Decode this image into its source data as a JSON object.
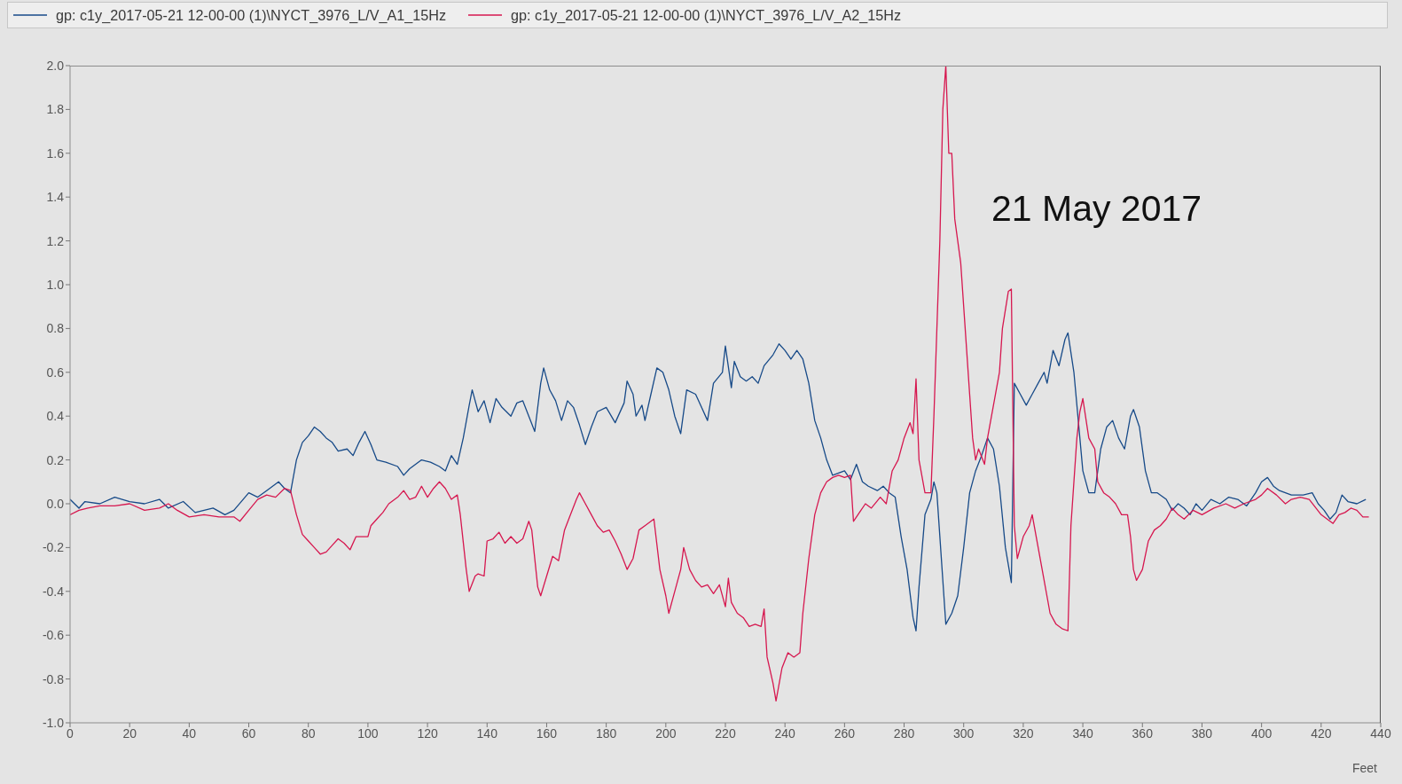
{
  "chart_data": {
    "type": "line",
    "xlabel": "Feet",
    "annotations": [
      "21 May 2017"
    ],
    "xlim": [
      0,
      440
    ],
    "xticks": [
      0,
      20,
      40,
      60,
      80,
      100,
      120,
      140,
      160,
      180,
      200,
      220,
      240,
      260,
      280,
      300,
      320,
      340,
      360,
      380,
      400,
      420,
      440
    ],
    "ylim": [
      -1,
      2
    ],
    "yticks": [
      {
        "value": -1,
        "label": "-1.0"
      },
      {
        "value": -0.8,
        "label": "-0.8"
      },
      {
        "value": -0.6,
        "label": "-0.6"
      },
      {
        "value": -0.4,
        "label": "-0.4"
      },
      {
        "value": -0.2,
        "label": "-0.2"
      },
      {
        "value": 0,
        "label": "0.0"
      },
      {
        "value": 0.2,
        "label": "0.2"
      },
      {
        "value": 0.4,
        "label": "0.4"
      },
      {
        "value": 0.6,
        "label": "0.6"
      },
      {
        "value": 0.8,
        "label": "0.8"
      },
      {
        "value": 1,
        "label": "1.0"
      },
      {
        "value": 1.2,
        "label": "1.2"
      },
      {
        "value": 1.4,
        "label": "1.4"
      },
      {
        "value": 1.6,
        "label": "1.6"
      },
      {
        "value": 1.8,
        "label": "1.8"
      },
      {
        "value": 2,
        "label": "2.0"
      }
    ],
    "legend": "top left",
    "marker": "none",
    "line_style": "solid",
    "series": [
      {
        "name": "gp: c1y_2017-05-21 12-00-00 (1)\\NYCT_3976_L/V_A1_15Hz",
        "color": "#174a88",
        "x": [
          0,
          3,
          5,
          10,
          15,
          20,
          25,
          30,
          33,
          38,
          42,
          48,
          52,
          55,
          60,
          63,
          66,
          70,
          72,
          74,
          76,
          78,
          80,
          82,
          84,
          86,
          88,
          90,
          93,
          95,
          97,
          99,
          101,
          103,
          106,
          110,
          112,
          114,
          118,
          121,
          124,
          126,
          128,
          130,
          132,
          134,
          135,
          137,
          139,
          141,
          143,
          145,
          148,
          150,
          152,
          154,
          156,
          158,
          159,
          161,
          163,
          165,
          167,
          169,
          171,
          173,
          175,
          177,
          180,
          183,
          186,
          187,
          189,
          190,
          192,
          193,
          195,
          197,
          199,
          201,
          203,
          205,
          207,
          210,
          212,
          214,
          216,
          219,
          220,
          222,
          223,
          225,
          227,
          229,
          231,
          233,
          236,
          238,
          240,
          242,
          244,
          246,
          248,
          250,
          252,
          254,
          256,
          258,
          260,
          262,
          264,
          266,
          268,
          271,
          273,
          275,
          277,
          279,
          281,
          283,
          284,
          285,
          287,
          289,
          290,
          291,
          293,
          294,
          296,
          298,
          300,
          302,
          304,
          306,
          308,
          310,
          312,
          314,
          316,
          317,
          319,
          321,
          323,
          325,
          327,
          328,
          330,
          332,
          334,
          335,
          337,
          339,
          340,
          342,
          344,
          346,
          348,
          350,
          352,
          354,
          356,
          357,
          359,
          361,
          363,
          365,
          368,
          370,
          372,
          374,
          376,
          378,
          380,
          383,
          386,
          389,
          392,
          395,
          398,
          400,
          402,
          404,
          406,
          410,
          414,
          417,
          419,
          421,
          423,
          425,
          427,
          429,
          432,
          435
        ],
        "values": [
          0.02,
          -0.02,
          0.01,
          0,
          0.03,
          0.01,
          0,
          0.02,
          -0.02,
          0.01,
          -0.04,
          -0.02,
          -0.05,
          -0.03,
          0.05,
          0.03,
          0.06,
          0.1,
          0.07,
          0.05,
          0.2,
          0.28,
          0.31,
          0.35,
          0.33,
          0.3,
          0.28,
          0.24,
          0.25,
          0.22,
          0.28,
          0.33,
          0.27,
          0.2,
          0.19,
          0.17,
          0.13,
          0.16,
          0.2,
          0.19,
          0.17,
          0.15,
          0.22,
          0.18,
          0.3,
          0.45,
          0.52,
          0.42,
          0.47,
          0.37,
          0.48,
          0.44,
          0.4,
          0.46,
          0.47,
          0.4,
          0.33,
          0.55,
          0.62,
          0.52,
          0.47,
          0.38,
          0.47,
          0.44,
          0.36,
          0.27,
          0.35,
          0.42,
          0.44,
          0.37,
          0.46,
          0.56,
          0.5,
          0.4,
          0.45,
          0.38,
          0.5,
          0.62,
          0.6,
          0.52,
          0.4,
          0.32,
          0.52,
          0.5,
          0.44,
          0.38,
          0.55,
          0.6,
          0.72,
          0.53,
          0.65,
          0.58,
          0.56,
          0.58,
          0.55,
          0.63,
          0.68,
          0.73,
          0.7,
          0.66,
          0.7,
          0.66,
          0.55,
          0.38,
          0.3,
          0.2,
          0.13,
          0.14,
          0.15,
          0.11,
          0.18,
          0.1,
          0.08,
          0.06,
          0.08,
          0.05,
          0.03,
          -0.15,
          -0.3,
          -0.52,
          -0.58,
          -0.38,
          -0.05,
          0.02,
          0.1,
          0.05,
          -0.35,
          -0.55,
          -0.5,
          -0.42,
          -0.2,
          0.05,
          0.15,
          0.22,
          0.3,
          0.25,
          0.08,
          -0.2,
          -0.36,
          0.55,
          0.5,
          0.45,
          0.5,
          0.55,
          0.6,
          0.55,
          0.7,
          0.63,
          0.75,
          0.78,
          0.6,
          0.3,
          0.15,
          0.05,
          0.05,
          0.25,
          0.35,
          0.38,
          0.3,
          0.25,
          0.4,
          0.43,
          0.35,
          0.15,
          0.05,
          0.05,
          0.02,
          -0.03,
          0,
          -0.02,
          -0.05,
          0,
          -0.03,
          0.02,
          0,
          0.03,
          0.02,
          -0.01,
          0.05,
          0.1,
          0.12,
          0.08,
          0.06,
          0.04,
          0.04,
          0.05,
          0,
          -0.03,
          -0.07,
          -0.04,
          0.04,
          0.01,
          0,
          0.02
        ]
      },
      {
        "name": "gp: c1y_2017-05-21 12-00-00 (1)\\NYCT_3976_L/V_A2_15Hz",
        "color": "#d6174f",
        "x": [
          0,
          3,
          6,
          10,
          15,
          20,
          25,
          30,
          33,
          36,
          40,
          45,
          50,
          55,
          57,
          60,
          63,
          66,
          69,
          72,
          74,
          76,
          78,
          80,
          82,
          84,
          86,
          88,
          90,
          92,
          94,
          96,
          98,
          100,
          101,
          103,
          105,
          107,
          110,
          112,
          114,
          116,
          118,
          120,
          122,
          124,
          126,
          128,
          130,
          131,
          133,
          134,
          136,
          137,
          139,
          140,
          142,
          144,
          146,
          148,
          150,
          152,
          154,
          155,
          157,
          158,
          160,
          162,
          164,
          166,
          168,
          170,
          171,
          173,
          175,
          177,
          179,
          181,
          183,
          185,
          187,
          189,
          191,
          193,
          196,
          198,
          200,
          201,
          203,
          205,
          206,
          208,
          210,
          212,
          214,
          216,
          218,
          220,
          221,
          222,
          224,
          226,
          228,
          230,
          232,
          233,
          234,
          236,
          237,
          239,
          241,
          243,
          245,
          246,
          248,
          250,
          252,
          254,
          256,
          258,
          260,
          262,
          263,
          265,
          267,
          269,
          272,
          274,
          276,
          278,
          280,
          282,
          283,
          284,
          285,
          287,
          289,
          290,
          292,
          293,
          294,
          295,
          296,
          297,
          298,
          299,
          300,
          301,
          302,
          303,
          304,
          305,
          307,
          308,
          310,
          312,
          313,
          315,
          316,
          317,
          318,
          320,
          322,
          323,
          325,
          327,
          329,
          331,
          333,
          335,
          336,
          338,
          339,
          340,
          342,
          344,
          345,
          347,
          349,
          351,
          353,
          355,
          356,
          357,
          358,
          360,
          362,
          364,
          366,
          368,
          370,
          372,
          374,
          377,
          380,
          384,
          388,
          391,
          394,
          398,
          400,
          402,
          405,
          408,
          410,
          413,
          416,
          420,
          422,
          424,
          426,
          428,
          430,
          432,
          434,
          436
        ],
        "values": [
          -0.05,
          -0.03,
          -0.02,
          -0.01,
          -0.01,
          0,
          -0.03,
          -0.02,
          0,
          -0.03,
          -0.06,
          -0.05,
          -0.06,
          -0.06,
          -0.08,
          -0.03,
          0.02,
          0.04,
          0.03,
          0.07,
          0.06,
          -0.05,
          -0.14,
          -0.17,
          -0.2,
          -0.23,
          -0.22,
          -0.19,
          -0.16,
          -0.18,
          -0.21,
          -0.15,
          -0.15,
          -0.15,
          -0.1,
          -0.07,
          -0.04,
          0,
          0.03,
          0.06,
          0.02,
          0.03,
          0.08,
          0.03,
          0.07,
          0.1,
          0.07,
          0.02,
          0.04,
          -0.05,
          -0.3,
          -0.4,
          -0.33,
          -0.32,
          -0.33,
          -0.17,
          -0.16,
          -0.13,
          -0.18,
          -0.15,
          -0.18,
          -0.16,
          -0.08,
          -0.12,
          -0.38,
          -0.42,
          -0.33,
          -0.24,
          -0.26,
          -0.12,
          -0.05,
          0.02,
          0.05,
          0,
          -0.05,
          -0.1,
          -0.13,
          -0.12,
          -0.17,
          -0.23,
          -0.3,
          -0.25,
          -0.12,
          -0.1,
          -0.07,
          -0.3,
          -0.42,
          -0.5,
          -0.4,
          -0.3,
          -0.2,
          -0.3,
          -0.35,
          -0.38,
          -0.37,
          -0.41,
          -0.37,
          -0.47,
          -0.34,
          -0.45,
          -0.5,
          -0.52,
          -0.56,
          -0.55,
          -0.56,
          -0.48,
          -0.7,
          -0.82,
          -0.9,
          -0.75,
          -0.68,
          -0.7,
          -0.68,
          -0.5,
          -0.25,
          -0.05,
          0.05,
          0.1,
          0.12,
          0.13,
          0.12,
          0.13,
          -0.08,
          -0.04,
          0,
          -0.02,
          0.03,
          0,
          0.15,
          0.2,
          0.3,
          0.37,
          0.32,
          0.57,
          0.2,
          0.05,
          0.05,
          0.4,
          1.2,
          1.8,
          2,
          1.6,
          1.6,
          1.3,
          1.2,
          1.1,
          0.9,
          0.7,
          0.5,
          0.3,
          0.2,
          0.25,
          0.18,
          0.3,
          0.45,
          0.6,
          0.8,
          0.97,
          0.98,
          -0.1,
          -0.25,
          -0.15,
          -0.1,
          -0.05,
          -0.2,
          -0.35,
          -0.5,
          -0.55,
          -0.57,
          -0.58,
          -0.1,
          0.3,
          0.42,
          0.48,
          0.3,
          0.25,
          0.1,
          0.05,
          0.03,
          0,
          -0.05,
          -0.05,
          -0.15,
          -0.3,
          -0.35,
          -0.3,
          -0.17,
          -0.12,
          -0.1,
          -0.07,
          -0.02,
          -0.05,
          -0.07,
          -0.03,
          -0.05,
          -0.02,
          0,
          -0.02,
          0,
          0.02,
          0.04,
          0.07,
          0.04,
          0,
          0.02,
          0.03,
          0.02,
          -0.05,
          -0.07,
          -0.09,
          -0.05,
          -0.04,
          -0.02,
          -0.03,
          -0.06,
          -0.06
        ]
      }
    ]
  }
}
